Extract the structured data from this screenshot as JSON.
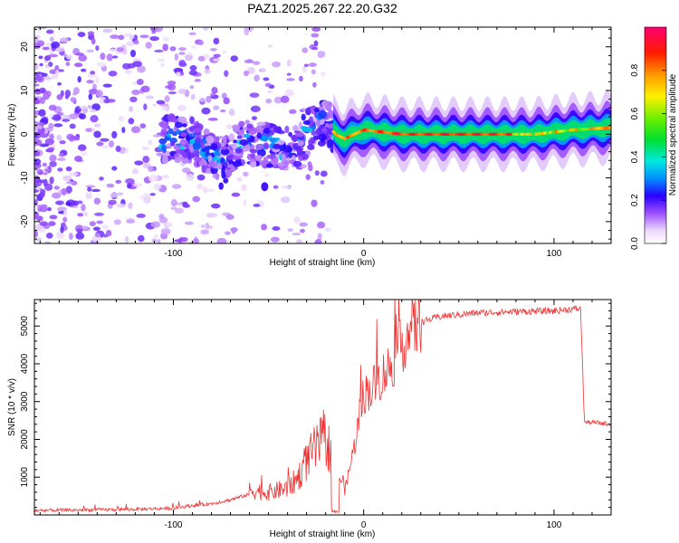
{
  "title": "PAZ1.2025.267.22.20.G32",
  "chart_data": [
    {
      "type": "heatmap",
      "xlabel": "Height of straight line (km)",
      "ylabel": "Frequency (Hz)",
      "xlim": [
        -173,
        130
      ],
      "ylim": [
        -25,
        24.5
      ],
      "xticks": [
        -100,
        0,
        100
      ],
      "yticks": [
        -20,
        -10,
        0,
        10,
        20
      ],
      "colorbar": {
        "label": "Normalized spectral amplitude",
        "range": [
          0,
          1
        ],
        "ticks": [
          0.0,
          0.2,
          0.4,
          0.6,
          0.8
        ]
      },
      "ridge": {
        "x": [
          -100,
          -90,
          -80,
          -75,
          -65,
          -55,
          -45,
          -40,
          -30,
          -25,
          -20,
          -15,
          -10,
          0,
          20,
          50,
          90,
          110,
          130
        ],
        "y": [
          -1,
          -1.5,
          -4,
          -7,
          -2,
          -2,
          -3,
          -5,
          0,
          2,
          3,
          0,
          -1,
          1,
          0,
          0,
          0,
          1,
          1.5
        ],
        "amplitude": [
          0.25,
          0.3,
          0.3,
          0.3,
          0.25,
          0.3,
          0.25,
          0.3,
          0.25,
          0.3,
          0.3,
          0.9,
          0.85,
          0.9,
          0.95,
          0.97,
          0.92,
          0.9,
          0.85
        ]
      }
    },
    {
      "type": "line",
      "xlabel": "Height of straight line (km)",
      "ylabel": "SNR (10 * v/v)",
      "xlim": [
        -173,
        130
      ],
      "ylim": [
        0,
        5700
      ],
      "xticks": [
        -100,
        0,
        100
      ],
      "yticks": [
        1000,
        2000,
        3000,
        4000,
        5000
      ],
      "color": "#ee3333",
      "series": [
        {
          "x": [
            -173,
            -150,
            -120,
            -100,
            -90,
            -80,
            -70,
            -60,
            -50,
            -40,
            -35,
            -30,
            -25,
            -20,
            -15,
            -10,
            -5,
            0,
            5,
            10,
            15,
            20,
            25,
            30,
            40,
            50,
            60,
            80,
            100,
            110,
            114,
            116,
            120,
            130
          ],
          "y": [
            120,
            130,
            150,
            180,
            250,
            300,
            400,
            550,
            500,
            600,
            800,
            1200,
            1500,
            1700,
            1200,
            600,
            1800,
            3200,
            3400,
            3700,
            4000,
            4500,
            4900,
            5100,
            5250,
            5300,
            5350,
            5380,
            5400,
            5450,
            5450,
            2450,
            2450,
            2400
          ]
        }
      ]
    }
  ]
}
